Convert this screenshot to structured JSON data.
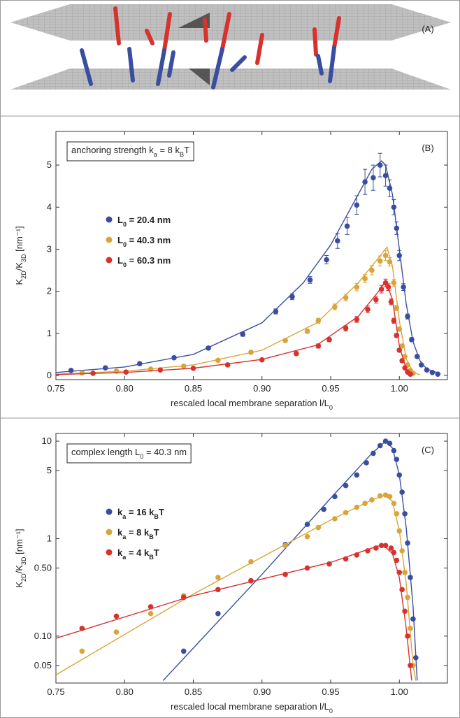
{
  "panel_a": {
    "label": "(A)"
  },
  "chart_data": [
    {
      "type": "scatter",
      "label": "(B)",
      "annotation": [
        "anchoring strength k",
        "a",
        " = 8 k",
        "B",
        "T"
      ],
      "x_label": [
        "rescaled local membrane separation l/L",
        "0"
      ],
      "y_label": [
        "K",
        "2D",
        "/K",
        "3D",
        " [nm⁻¹]"
      ],
      "xlim": [
        0.75,
        1.035
      ],
      "xticks": [
        {
          "value": 0.75,
          "label": "0.75"
        },
        {
          "value": 0.8,
          "label": "0.80"
        },
        {
          "value": 0.85,
          "label": "0.85"
        },
        {
          "value": 0.9,
          "label": "0.90"
        },
        {
          "value": 0.95,
          "label": "0.95"
        },
        {
          "value": 1.0,
          "label": "1.00"
        }
      ],
      "ylim": [
        -0.1,
        5.8
      ],
      "yticks": [
        0,
        1,
        2,
        3,
        4,
        5
      ],
      "log_y": false,
      "series": [
        {
          "name": [
            "L",
            "0",
            " = 20.4 nm"
          ],
          "color": "#3a4ea0",
          "x": [
            0.761,
            0.786,
            0.811,
            0.836,
            0.861,
            0.886,
            0.91,
            0.922,
            0.935,
            0.947,
            0.955,
            0.962,
            0.969,
            0.975,
            0.981,
            0.986,
            0.99,
            0.993,
            0.996,
            0.998,
            1.0,
            1.003,
            1.006,
            1.009,
            1.013,
            1.016,
            1.02,
            1.024,
            1.028
          ],
          "values": [
            0.12,
            0.18,
            0.28,
            0.42,
            0.65,
            0.98,
            1.52,
            1.87,
            2.27,
            2.75,
            3.2,
            3.55,
            4.05,
            4.6,
            4.7,
            5.0,
            4.75,
            4.45,
            4.0,
            3.5,
            2.85,
            2.1,
            1.4,
            0.85,
            0.45,
            0.25,
            0.13,
            0.07,
            0.03
          ],
          "errors": [
            0.02,
            0.02,
            0.03,
            0.03,
            0.04,
            0.05,
            0.06,
            0.07,
            0.08,
            0.1,
            0.18,
            0.2,
            0.22,
            0.3,
            0.3,
            0.28,
            0.25,
            0.2,
            0.18,
            0.15,
            0.12,
            0.08,
            0.06,
            0.05,
            0.04,
            0.03,
            0.02,
            0.02,
            0.02
          ],
          "fit_x": [
            0.75,
            0.8,
            0.85,
            0.9,
            0.93,
            0.95,
            0.97,
            0.98,
            0.987,
            0.99,
            0.995,
            1.0,
            1.005,
            1.01,
            1.015,
            1.02,
            1.03
          ],
          "fit_values": [
            0.07,
            0.2,
            0.5,
            1.25,
            2.2,
            3.1,
            4.3,
            4.9,
            5.1,
            5.0,
            4.3,
            3.0,
            1.7,
            0.8,
            0.35,
            0.15,
            0.04
          ]
        },
        {
          "name": [
            "L",
            "0",
            " = 40.3 nm"
          ],
          "color": "#d9a53a",
          "x": [
            0.769,
            0.794,
            0.819,
            0.843,
            0.868,
            0.892,
            0.917,
            0.933,
            0.941,
            0.953,
            0.961,
            0.969,
            0.975,
            0.98,
            0.986,
            0.99,
            0.993,
            0.996,
            0.998,
            1.0,
            1.002,
            1.004,
            1.006,
            1.008,
            1.01
          ],
          "values": [
            0.06,
            0.1,
            0.15,
            0.22,
            0.36,
            0.55,
            0.83,
            1.05,
            1.3,
            1.63,
            1.85,
            2.1,
            2.3,
            2.5,
            2.72,
            2.85,
            2.7,
            2.2,
            1.6,
            1.1,
            0.7,
            0.45,
            0.25,
            0.12,
            0.05
          ],
          "errors": [
            0.02,
            0.02,
            0.02,
            0.03,
            0.03,
            0.04,
            0.04,
            0.05,
            0.06,
            0.07,
            0.08,
            0.09,
            0.1,
            0.11,
            0.12,
            0.12,
            0.1,
            0.08,
            0.06,
            0.05,
            0.04,
            0.03,
            0.02,
            0.02,
            0.02
          ],
          "fit_x": [
            0.75,
            0.8,
            0.85,
            0.9,
            0.94,
            0.97,
            0.985,
            0.991,
            0.995,
            1.0,
            1.005,
            1.01,
            1.015
          ],
          "fit_values": [
            0.03,
            0.1,
            0.25,
            0.6,
            1.25,
            2.2,
            2.8,
            3.05,
            2.6,
            1.3,
            0.4,
            0.08,
            0.01
          ]
        },
        {
          "name": [
            "L",
            "0",
            " = 60.3 nm"
          ],
          "color": "#d6332f",
          "x": [
            0.777,
            0.801,
            0.826,
            0.85,
            0.875,
            0.9,
            0.925,
            0.941,
            0.949,
            0.961,
            0.969,
            0.977,
            0.983,
            0.987,
            0.99,
            0.992,
            0.994,
            0.996,
            0.998,
            1.0,
            1.002,
            1.004,
            1.006,
            1.008
          ],
          "values": [
            0.05,
            0.08,
            0.13,
            0.17,
            0.25,
            0.37,
            0.52,
            0.7,
            0.85,
            1.12,
            1.33,
            1.57,
            1.8,
            2.05,
            2.2,
            2.1,
            1.75,
            1.3,
            0.95,
            0.6,
            0.35,
            0.18,
            0.08,
            0.03
          ],
          "errors": [
            0.02,
            0.02,
            0.02,
            0.02,
            0.03,
            0.03,
            0.04,
            0.05,
            0.05,
            0.06,
            0.07,
            0.08,
            0.08,
            0.09,
            0.09,
            0.08,
            0.07,
            0.06,
            0.05,
            0.04,
            0.03,
            0.02,
            0.02,
            0.02
          ],
          "fit_x": [
            0.75,
            0.8,
            0.85,
            0.9,
            0.94,
            0.97,
            0.985,
            0.99,
            0.995,
            1.0,
            1.005,
            1.01
          ],
          "fit_values": [
            0.02,
            0.07,
            0.17,
            0.38,
            0.72,
            1.4,
            2.0,
            2.25,
            1.8,
            0.7,
            0.15,
            0.02
          ]
        }
      ]
    },
    {
      "type": "scatter",
      "label": "(C)",
      "annotation": [
        "complex length L",
        "0",
        " = 40.3 nm"
      ],
      "x_label": [
        "rescaled local membrane separation l/L",
        "0"
      ],
      "y_label": [
        "K",
        "2D",
        "/K",
        "3D",
        " [nm⁻¹]"
      ],
      "xlim": [
        0.75,
        1.035
      ],
      "xticks": [
        {
          "value": 0.75,
          "label": "0.75"
        },
        {
          "value": 0.8,
          "label": "0.80"
        },
        {
          "value": 0.85,
          "label": "0.85"
        },
        {
          "value": 0.9,
          "label": "0.90"
        },
        {
          "value": 0.95,
          "label": "0.95"
        },
        {
          "value": 1.0,
          "label": "1.00"
        }
      ],
      "ylim": [
        0.033,
        12
      ],
      "log_y": true,
      "yticks": [
        0.05,
        {
          "value": 0.1,
          "label": "0.10"
        },
        {
          "value": 0.5,
          "label": "0.50"
        },
        1,
        5,
        10
      ],
      "series": [
        {
          "name": [
            "k",
            "a",
            " = 16 k",
            "B",
            "T"
          ],
          "color": "#3a4ea0",
          "x": [
            0.843,
            0.868,
            0.892,
            0.917,
            0.933,
            0.945,
            0.953,
            0.961,
            0.969,
            0.976,
            0.981,
            0.986,
            0.99,
            0.993,
            0.996,
            0.998,
            1.0,
            1.002,
            1.004,
            1.006,
            1.008,
            1.01,
            1.012
          ],
          "values": [
            0.07,
            0.17,
            0.37,
            0.87,
            1.4,
            2.0,
            2.7,
            3.5,
            4.5,
            6.0,
            7.5,
            9.0,
            10.0,
            9.5,
            8.0,
            6.5,
            4.5,
            3.0,
            1.8,
            0.9,
            0.4,
            0.15,
            0.06
          ],
          "fit_x": [
            0.828,
            0.9,
            0.95,
            0.98,
            0.99,
            0.995,
            1.0,
            1.005,
            1.01,
            1.013
          ],
          "fit_values": [
            0.035,
            0.43,
            2.6,
            7.5,
            10,
            8.5,
            4.5,
            1.3,
            0.2,
            0.035
          ]
        },
        {
          "name": [
            "k",
            "a",
            " =  8 k",
            "B",
            "T"
          ],
          "color": "#d9a53a",
          "x": [
            0.769,
            0.794,
            0.819,
            0.843,
            0.868,
            0.892,
            0.917,
            0.933,
            0.941,
            0.953,
            0.961,
            0.969,
            0.975,
            0.98,
            0.986,
            0.99,
            0.993,
            0.996,
            0.998,
            1.0,
            1.002,
            1.004,
            1.006,
            1.008,
            1.01
          ],
          "values": [
            0.07,
            0.11,
            0.17,
            0.26,
            0.4,
            0.58,
            0.85,
            1.05,
            1.3,
            1.6,
            1.85,
            2.1,
            2.3,
            2.5,
            2.75,
            2.8,
            2.7,
            2.3,
            1.8,
            1.2,
            0.75,
            0.45,
            0.25,
            0.12,
            0.05
          ],
          "fit_x": [
            0.75,
            0.85,
            0.95,
            0.98,
            0.99,
            0.995,
            1.0,
            1.005,
            1.01,
            1.012
          ],
          "fit_values": [
            0.04,
            0.27,
            1.55,
            2.5,
            2.8,
            2.4,
            1.2,
            0.35,
            0.05,
            0.035
          ]
        },
        {
          "name": [
            "k",
            "a",
            " =  4 k",
            "B",
            "T"
          ],
          "color": "#d6332f",
          "x": [
            0.769,
            0.794,
            0.819,
            0.843,
            0.868,
            0.892,
            0.917,
            0.933,
            0.949,
            0.961,
            0.969,
            0.977,
            0.983,
            0.987,
            0.99,
            0.994,
            0.996,
            0.998,
            1.0,
            1.002,
            1.004,
            1.006,
            1.008
          ],
          "values": [
            0.12,
            0.16,
            0.2,
            0.25,
            0.3,
            0.37,
            0.43,
            0.5,
            0.55,
            0.62,
            0.68,
            0.75,
            0.8,
            0.85,
            0.85,
            0.8,
            0.72,
            0.6,
            0.45,
            0.3,
            0.18,
            0.1,
            0.05
          ],
          "fit_x": [
            0.75,
            0.85,
            0.95,
            0.98,
            0.988,
            0.995,
            1.0,
            1.005,
            1.009
          ],
          "fit_values": [
            0.095,
            0.26,
            0.57,
            0.8,
            0.87,
            0.7,
            0.4,
            0.12,
            0.035
          ]
        }
      ]
    }
  ]
}
